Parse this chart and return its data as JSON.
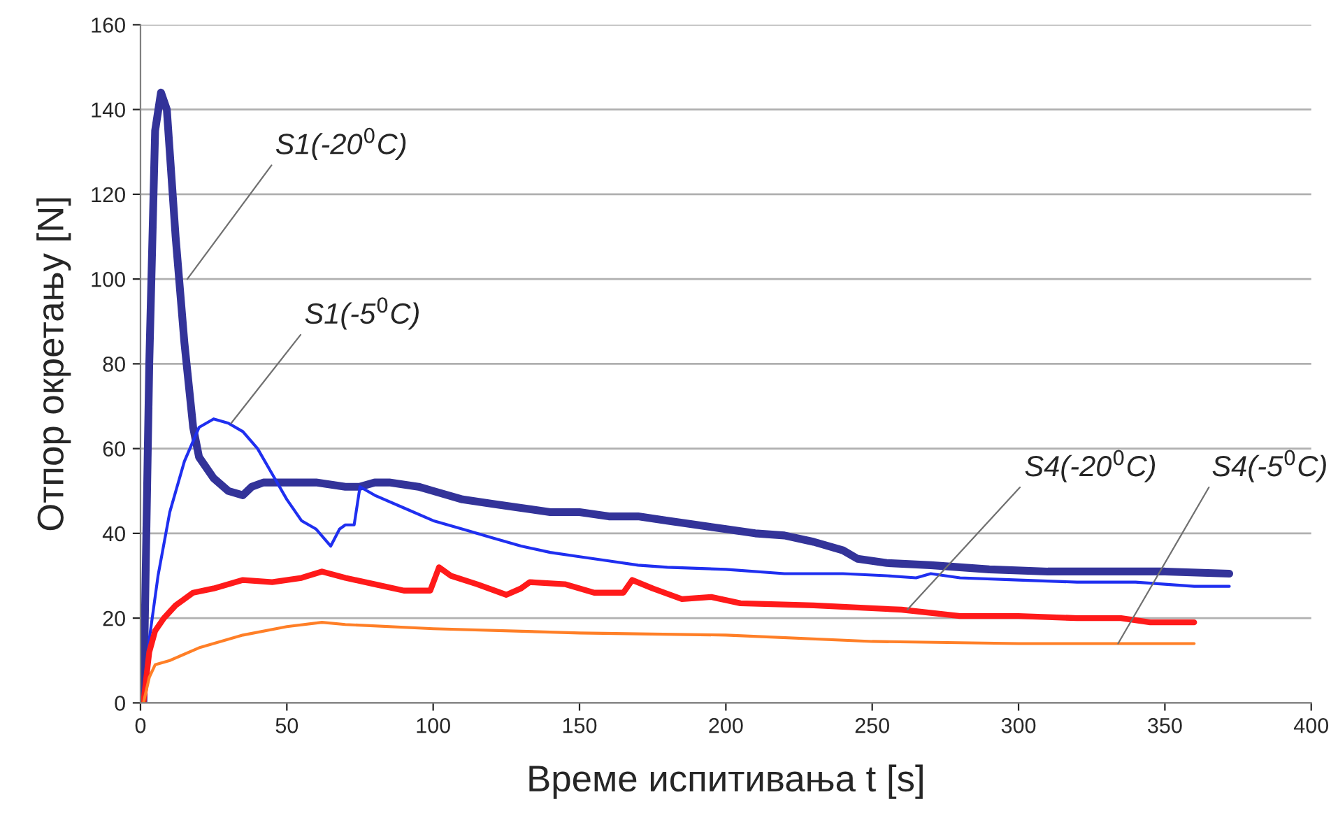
{
  "chart_data": {
    "type": "line",
    "xlabel": "Време испитивања t [s]",
    "ylabel": "Отпор окретању [N]",
    "xlim": [
      0,
      400
    ],
    "xticks": [
      0,
      50,
      100,
      150,
      200,
      250,
      300,
      350,
      400
    ],
    "ylim": [
      0,
      160
    ],
    "yticks": [
      0,
      20,
      40,
      60,
      80,
      100,
      120,
      140,
      160
    ],
    "grid": "y",
    "legend": false,
    "series": [
      {
        "color": "#333399",
        "x": [
          1,
          3,
          5,
          7,
          9,
          12,
          15,
          18,
          20,
          25,
          30,
          35,
          38,
          42,
          50,
          60,
          70,
          75,
          80,
          85,
          95,
          100,
          110,
          120,
          130,
          140,
          150,
          160,
          170,
          180,
          190,
          200,
          210,
          220,
          230,
          240,
          245,
          255,
          270,
          290,
          310,
          330,
          350,
          372
        ],
        "values": [
          0,
          80,
          135,
          144,
          140,
          110,
          85,
          65,
          58,
          53,
          50,
          49,
          51,
          52,
          52,
          52,
          51,
          51,
          52,
          52,
          51,
          50,
          48,
          47,
          46,
          45,
          45,
          44,
          44,
          43,
          42,
          41,
          40,
          39.5,
          38,
          36,
          34,
          33,
          32.5,
          31.5,
          31,
          31,
          31,
          30.5
        ]
      },
      {
        "color": "#1f2ff0",
        "x": [
          1,
          3,
          6,
          10,
          15,
          20,
          25,
          30,
          35,
          40,
          45,
          50,
          55,
          60,
          65,
          68,
          70,
          73,
          75,
          80,
          90,
          100,
          110,
          120,
          130,
          140,
          150,
          160,
          170,
          180,
          200,
          220,
          240,
          255,
          265,
          270,
          280,
          300,
          320,
          340,
          360,
          372
        ],
        "values": [
          0,
          15,
          30,
          45,
          57,
          65,
          67,
          66,
          64,
          60,
          54,
          48,
          43,
          41,
          37,
          41,
          42,
          42,
          51,
          49,
          46,
          43,
          41,
          39,
          37,
          35.5,
          34.5,
          33.5,
          32.5,
          32,
          31.5,
          30.5,
          30.5,
          30,
          29.5,
          30.5,
          29.5,
          29,
          28.5,
          28.5,
          27.5,
          27.5
        ]
      },
      {
        "color": "#ff1a1a",
        "x": [
          1,
          3,
          5,
          8,
          12,
          18,
          25,
          35,
          45,
          55,
          62,
          70,
          80,
          90,
          99,
          102,
          106,
          115,
          125,
          130,
          133,
          145,
          155,
          165,
          168,
          175,
          185,
          195,
          205,
          230,
          260,
          280,
          300,
          320,
          335,
          345,
          360
        ],
        "values": [
          0,
          12,
          17,
          20,
          23,
          26,
          27,
          29,
          28.5,
          29.5,
          31,
          29.5,
          28,
          26.5,
          26.5,
          32,
          30,
          28,
          25.5,
          27,
          28.5,
          28,
          26,
          26,
          29,
          27,
          24.5,
          25,
          23.5,
          23,
          22,
          20.5,
          20.5,
          20,
          20,
          19,
          19
        ]
      },
      {
        "color": "#ff7f27",
        "x": [
          1,
          3,
          5,
          10,
          20,
          35,
          50,
          62,
          70,
          100,
          150,
          200,
          250,
          300,
          340,
          360
        ],
        "values": [
          0,
          6,
          9,
          10,
          13,
          16,
          18,
          19,
          18.5,
          17.5,
          16.5,
          16,
          14.5,
          14,
          14,
          14
        ]
      }
    ],
    "annotations": [
      {
        "text": "S1(-20$^{0}$C)",
        "x": 16,
        "y": 100
      },
      {
        "text": "S1(-5$^{0}$C)",
        "x": 31,
        "y": 66
      },
      {
        "text": "S4(-20$^{0}$C)",
        "x": 262,
        "y": 22
      },
      {
        "text": "S4(-5$^{0}$C)",
        "x": 334,
        "y": 14
      }
    ]
  }
}
